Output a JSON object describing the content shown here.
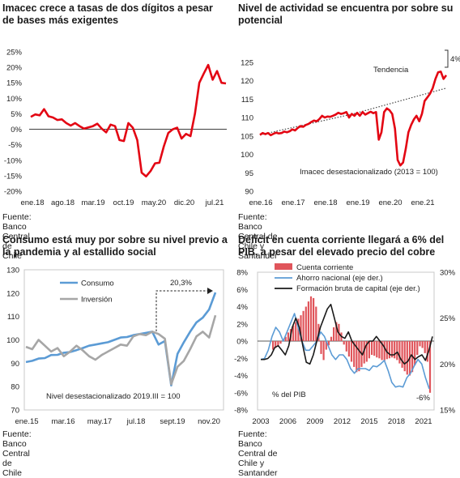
{
  "charts": [
    {
      "title": "Imacec crece a tasas de dos dígitos a pesar de bases más exigentes",
      "source": "Fuente: Banco Central de Chile",
      "chart_data": {
        "type": "line",
        "x_tick_labels": [
          "ene.18",
          "ago.18",
          "mar.19",
          "oct.19",
          "may.20",
          "dic.20",
          "jul.21"
        ],
        "y_tick_labels": [
          "25%",
          "20%",
          "15%",
          "10%",
          "5%",
          "0%",
          "-5%",
          "-10%",
          "-15%",
          "-20%"
        ],
        "ylim": [
          -20,
          25
        ],
        "color": "#e30613",
        "values": [
          4.0,
          4.8,
          4.5,
          6.5,
          4.2,
          3.8,
          3.0,
          3.2,
          2.0,
          1.2,
          2.0,
          1.0,
          0.2,
          0.6,
          1.0,
          1.8,
          0.2,
          -1.0,
          1.5,
          1.0,
          -3.5,
          -3.8,
          2.0,
          0.5,
          -3.5,
          -14.0,
          -15.2,
          -13.5,
          -11.0,
          -10.8,
          -5.5,
          -1.2,
          0.0,
          0.5,
          -3.0,
          -1.5,
          -2.2,
          5.0,
          15.0,
          18.0,
          20.8,
          16.0,
          18.8,
          15.0,
          14.8
        ]
      }
    },
    {
      "title": "Nivel de actividad se encuentra por sobre su potencial",
      "source": "Fuente: Banco Central de Chile y Santander",
      "annotations": {
        "trend": "Tendencia",
        "gap": "4%",
        "note": "Imacec desestacionalizado (2013 = 100)"
      },
      "chart_data": {
        "type": "line",
        "x_tick_labels": [
          "ene.16",
          "ene.17",
          "ene.18",
          "ene.19",
          "ene.20",
          "ene.21"
        ],
        "y_tick_labels": [
          "125",
          "120",
          "115",
          "110",
          "105",
          "100",
          "95",
          "90"
        ],
        "ylim": [
          90,
          125
        ],
        "color": "#e30613",
        "trend_color": "#444444",
        "values": [
          105.3,
          105.8,
          105.5,
          105.8,
          105.2,
          105.6,
          105.9,
          105.7,
          105.8,
          106.2,
          106.0,
          106.3,
          106.8,
          106.5,
          107.2,
          107.7,
          107.5,
          108.0,
          108.3,
          108.8,
          109.2,
          109.0,
          109.6,
          110.5,
          110.0,
          110.3,
          110.2,
          110.5,
          110.8,
          111.3,
          111.0,
          111.2,
          111.5,
          110.0,
          111.0,
          110.5,
          111.3,
          110.5,
          111.5,
          110.8,
          111.2,
          111.6,
          111.2,
          111.5,
          104.0,
          106.0,
          111.5,
          112.5,
          112.0,
          111.0,
          107.0,
          98.5,
          97.0,
          97.8,
          101.5,
          106.0,
          108.0,
          109.5,
          110.5,
          109.0,
          111.0,
          114.5,
          115.5,
          116.5,
          118.0,
          120.5,
          122.3,
          122.5,
          120.5,
          121.5
        ],
        "trend": [
          105.3,
          111.0,
          118.0
        ]
      }
    },
    {
      "title": "Consumo está muy por sobre su nivel previo a la pandemia y al estallido social",
      "source": "Fuente: Banco Central de Chile",
      "annotations": {
        "label": "20,3%",
        "note": "Nivel desestacionalizado 2019.III = 100"
      },
      "chart_data": {
        "type": "line",
        "x_tick_labels": [
          "ene.15",
          "mar.16",
          "may.17",
          "jul.18",
          "sept.19",
          "nov.20"
        ],
        "y_tick_labels": [
          "130",
          "120",
          "110",
          "100",
          "90",
          "80",
          "70"
        ],
        "ylim": [
          70,
          130
        ],
        "series": [
          {
            "name": "Consumo",
            "color": "#5b9bd5",
            "values": [
              90.5,
              91.0,
              92.0,
              92.2,
              93.5,
              93.6,
              94.5,
              94.8,
              95.6,
              96.5,
              97.5,
              98.0,
              98.5,
              99.0,
              100.0,
              101.0,
              101.2,
              102.0,
              102.5,
              103.0,
              103.5,
              98.0,
              99.5,
              80.5,
              94.0,
              99.0,
              103.5,
              107.5,
              109.5,
              113.0,
              120.3
            ]
          },
          {
            "name": "Inversión",
            "color": "#a6a6a6",
            "values": [
              97.0,
              96.0,
              100.0,
              97.5,
              95.0,
              96.5,
              93.0,
              95.0,
              97.5,
              95.5,
              93.0,
              91.5,
              93.5,
              95.0,
              96.5,
              98.0,
              97.5,
              101.5,
              102.5,
              102.0,
              103.5,
              102.5,
              100.5,
              81.0,
              88.5,
              91.0,
              96.0,
              101.5,
              103.5,
              101.0,
              110.5
            ]
          }
        ]
      }
    },
    {
      "title": "Déficit en cuenta corriente llegará a 6% del PIB, a pesar del elevado precio del cobre",
      "source": "Fuente: Banco Central de Chile y Santander",
      "annotations": {
        "units": "% del PIB",
        "deficit": "-6%"
      },
      "chart_data": {
        "type": "bar",
        "x_tick_labels": [
          "2003",
          "2006",
          "2009",
          "2012",
          "2015",
          "2018",
          "2021"
        ],
        "y_tick_labels": [
          "8%",
          "6%",
          "4%",
          "2%",
          "0%",
          "-2%",
          "-4%",
          "-6%",
          "-8%"
        ],
        "y2_tick_labels": [
          "30%",
          "25%",
          "20%",
          "15%"
        ],
        "ylim": [
          -8,
          8
        ],
        "y2lim": [
          15,
          30
        ],
        "series": [
          {
            "name": "Cuenta corriente",
            "color": "#e0555b",
            "type": "bar",
            "values": [
              -1.0,
              -0.8,
              -0.6,
              -0.3,
              0.0,
              0.5,
              1.0,
              1.4,
              1.8,
              2.2,
              2.6,
              3.0,
              3.5,
              4.0,
              4.6,
              5.2,
              5.0,
              4.0,
              2.0,
              -1.5,
              -2.2,
              -1.0,
              -0.5,
              0.5,
              1.6,
              2.2,
              2.0,
              1.0,
              -0.4,
              -1.2,
              -1.8,
              -2.4,
              -3.0,
              -3.6,
              -3.5,
              -3.0,
              -2.6,
              -2.4,
              -2.0,
              -1.6,
              -1.7,
              -1.9,
              -2.0,
              -2.2,
              -2.3,
              -2.1,
              -2.0,
              -1.9,
              -2.0,
              -2.2,
              -2.6,
              -3.1,
              -3.5,
              -3.9,
              -4.0,
              -3.6,
              -2.8,
              -1.6,
              -0.6,
              -0.8,
              -1.4,
              -2.4,
              -6.0
            ]
          },
          {
            "name": "Ahorro nacional (eje der.)",
            "color": "#5b9bd5",
            "type": "line",
            "values": [
              20.5,
              20.6,
              21.5,
              23.0,
              24.0,
              23.5,
              22.5,
              23.5,
              24.5,
              25.5,
              24.0,
              22.5,
              21.5,
              21.5,
              22.0,
              22.5,
              23.5,
              23.0,
              22.0,
              21.0,
              20.5,
              21.0,
              21.0,
              20.5,
              19.5,
              19.0,
              19.5,
              19.5,
              19.5,
              19.3,
              19.8,
              19.7,
              20.0,
              20.4,
              19.3,
              18.0,
              17.5,
              17.6,
              17.5,
              18.5,
              19.0,
              19.8,
              20.5,
              20.0,
              18.5,
              17.3
            ]
          },
          {
            "name": "Formación bruta de capital (eje der.)",
            "color": "#1a1a1a",
            "type": "line",
            "values": [
              20.5,
              20.5,
              20.6,
              21.0,
              21.8,
              22.0,
              21.5,
              21.0,
              22.0,
              24.0,
              25.0,
              24.0,
              22.0,
              20.2,
              20.0,
              21.0,
              22.5,
              24.0,
              25.0,
              26.0,
              26.5,
              25.0,
              23.5,
              23.0,
              22.8,
              23.5,
              22.5,
              22.0,
              21.5,
              21.0,
              22.0,
              22.5,
              22.5,
              23.0,
              22.5,
              22.0,
              21.3,
              21.0,
              21.0,
              21.3,
              20.5,
              20.0,
              20.3,
              21.0,
              20.5,
              20.8,
              21.0,
              20.4,
              21.5,
              23.0
            ]
          }
        ]
      }
    }
  ]
}
